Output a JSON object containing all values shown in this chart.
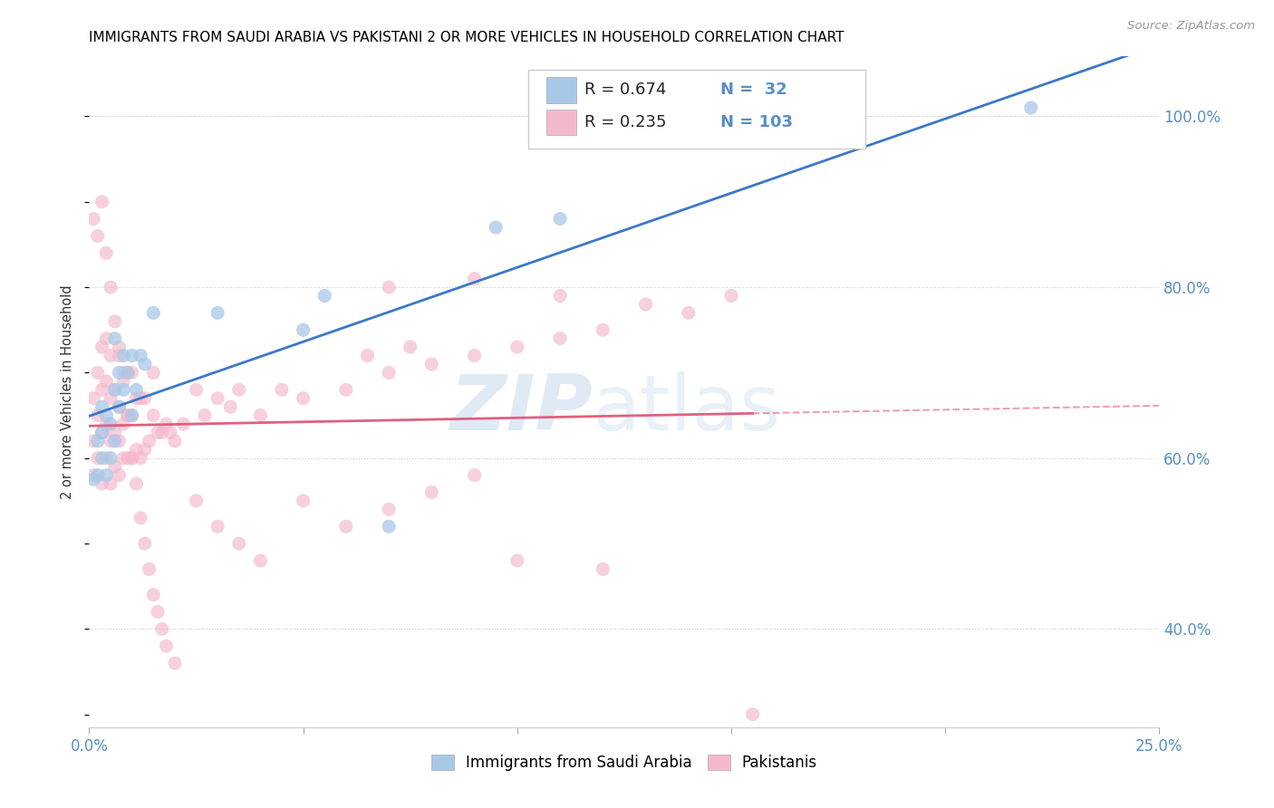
{
  "title": "IMMIGRANTS FROM SAUDI ARABIA VS PAKISTANI 2 OR MORE VEHICLES IN HOUSEHOLD CORRELATION CHART",
  "source": "Source: ZipAtlas.com",
  "ylabel": "2 or more Vehicles in Household",
  "legend_label_1": "Immigrants from Saudi Arabia",
  "legend_label_2": "Pakistanis",
  "R1": 0.674,
  "N1": 32,
  "R2": 0.235,
  "N2": 103,
  "color_saudi": "#a8c8e8",
  "color_pakistan": "#f4b8cc",
  "color_saudi_line": "#3a78c9",
  "color_pakistan_line": "#e06080",
  "color_axis": "#5b8ec4",
  "watermark_zip_color": "#c8dcf0",
  "watermark_atlas_color": "#b8d0e8",
  "xlim_min": 0.0,
  "xlim_max": 0.25,
  "ylim_min": 0.285,
  "ylim_max": 1.07,
  "right_ytick_vals": [
    0.4,
    0.6,
    0.8,
    1.0
  ],
  "right_ytick_labels": [
    "40.0%",
    "60.0%",
    "80.0%",
    "100.0%"
  ],
  "xtick_positions": [
    0.0,
    0.05,
    0.1,
    0.15,
    0.2,
    0.25
  ],
  "xtick_labels_show": [
    "0.0%",
    "",
    "",
    "",
    "",
    "25.0%"
  ],
  "saudi_x": [
    0.001,
    0.002,
    0.002,
    0.003,
    0.003,
    0.004,
    0.004,
    0.005,
    0.005,
    0.006,
    0.006,
    0.007,
    0.007,
    0.008,
    0.008,
    0.009,
    0.01,
    0.01,
    0.011,
    0.012,
    0.013,
    0.015,
    0.03,
    0.05,
    0.055,
    0.07,
    0.095,
    0.11,
    0.17,
    0.22,
    0.003,
    0.006
  ],
  "saudi_y": [
    0.575,
    0.62,
    0.58,
    0.6,
    0.63,
    0.58,
    0.65,
    0.6,
    0.64,
    0.62,
    0.68,
    0.66,
    0.7,
    0.68,
    0.72,
    0.7,
    0.65,
    0.72,
    0.68,
    0.72,
    0.71,
    0.77,
    0.77,
    0.75,
    0.79,
    0.52,
    0.87,
    0.88,
    0.97,
    1.01,
    0.66,
    0.74
  ],
  "pak_x": [
    0.001,
    0.001,
    0.001,
    0.002,
    0.002,
    0.002,
    0.003,
    0.003,
    0.003,
    0.003,
    0.004,
    0.004,
    0.004,
    0.004,
    0.005,
    0.005,
    0.005,
    0.005,
    0.006,
    0.006,
    0.006,
    0.007,
    0.007,
    0.007,
    0.007,
    0.008,
    0.008,
    0.008,
    0.009,
    0.009,
    0.009,
    0.01,
    0.01,
    0.01,
    0.011,
    0.011,
    0.012,
    0.012,
    0.013,
    0.013,
    0.014,
    0.015,
    0.015,
    0.016,
    0.017,
    0.018,
    0.019,
    0.02,
    0.022,
    0.025,
    0.027,
    0.03,
    0.033,
    0.035,
    0.04,
    0.045,
    0.05,
    0.06,
    0.065,
    0.07,
    0.075,
    0.08,
    0.09,
    0.1,
    0.11,
    0.12,
    0.13,
    0.14,
    0.15,
    0.07,
    0.09,
    0.11,
    0.001,
    0.002,
    0.003,
    0.004,
    0.005,
    0.006,
    0.007,
    0.008,
    0.009,
    0.01,
    0.011,
    0.012,
    0.013,
    0.014,
    0.015,
    0.016,
    0.017,
    0.018,
    0.02,
    0.025,
    0.03,
    0.035,
    0.04,
    0.05,
    0.06,
    0.07,
    0.08,
    0.09,
    0.1,
    0.12,
    0.155
  ],
  "pak_y": [
    0.62,
    0.67,
    0.58,
    0.6,
    0.65,
    0.7,
    0.57,
    0.63,
    0.68,
    0.73,
    0.6,
    0.64,
    0.69,
    0.74,
    0.57,
    0.62,
    0.67,
    0.72,
    0.59,
    0.63,
    0.68,
    0.58,
    0.62,
    0.66,
    0.72,
    0.6,
    0.64,
    0.7,
    0.6,
    0.65,
    0.7,
    0.6,
    0.65,
    0.7,
    0.61,
    0.67,
    0.6,
    0.67,
    0.61,
    0.67,
    0.62,
    0.65,
    0.7,
    0.63,
    0.63,
    0.64,
    0.63,
    0.62,
    0.64,
    0.68,
    0.65,
    0.67,
    0.66,
    0.68,
    0.65,
    0.68,
    0.67,
    0.68,
    0.72,
    0.7,
    0.73,
    0.71,
    0.72,
    0.73,
    0.74,
    0.75,
    0.78,
    0.77,
    0.79,
    0.8,
    0.81,
    0.79,
    0.88,
    0.86,
    0.9,
    0.84,
    0.8,
    0.76,
    0.73,
    0.69,
    0.65,
    0.6,
    0.57,
    0.53,
    0.5,
    0.47,
    0.44,
    0.42,
    0.4,
    0.38,
    0.36,
    0.55,
    0.52,
    0.5,
    0.48,
    0.55,
    0.52,
    0.54,
    0.56,
    0.58,
    0.48,
    0.47,
    0.3
  ]
}
